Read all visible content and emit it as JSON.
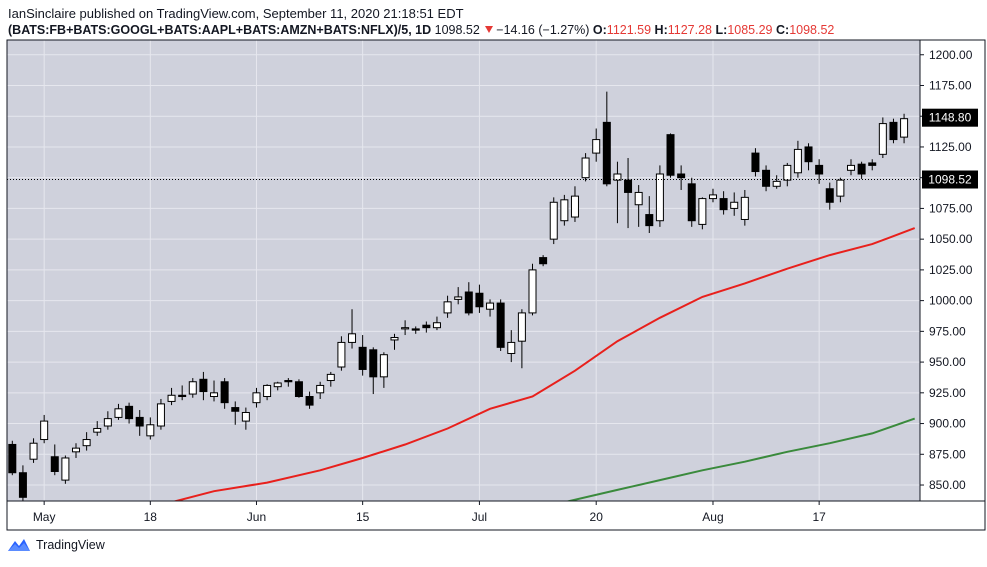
{
  "header": {
    "publisher_line": "IanSinclaire published on TradingView.com, September 11, 2020 21:18:51 EDT",
    "symbol": "(BATS:FB+BATS:GOOGL+BATS:AAPL+BATS:AMZN+BATS:NFLX)/5, 1D",
    "last": "1098.52",
    "change": "−14.16 (−1.27%)",
    "o_label": "O:",
    "o_value": "1121.59",
    "h_label": "H:",
    "h_value": "1127.28",
    "l_label": "L:",
    "l_value": "1085.29",
    "c_label": "C:",
    "c_value": "1098.52"
  },
  "footer": {
    "brand": "TradingView",
    "logo_icon": "tradingview-logo-icon"
  },
  "colors": {
    "up_body": "#ffffff",
    "down_body": "#000000",
    "ma_fast": "#e8201c",
    "ma_slow": "#3a8a3c",
    "plot_bg": "#cfd1dc",
    "grid": "#e6e7ee",
    "tag_bg": "#000000",
    "tag_fg": "#ffffff"
  },
  "chart_data": {
    "type": "candlestick",
    "title": "(BATS:FB+BATS:GOOGL+BATS:AAPL+BATS:AMZN+BATS:NFLX)/5, 1D",
    "y_range": [
      837,
      1212
    ],
    "y_ticks": [
      "1200.00",
      "1175.00",
      "1150.00",
      "1125.00",
      "1100.00",
      "1075.00",
      "1050.00",
      "1025.00",
      "1000.00",
      "975.00",
      "950.00",
      "925.00",
      "900.00",
      "875.00",
      "850.00"
    ],
    "x_labels": [
      "May",
      "18",
      "Jun",
      "15",
      "Jul",
      "20",
      "Aug",
      "17"
    ],
    "x_label_index": [
      4,
      14,
      24,
      34,
      45,
      56,
      67,
      77
    ],
    "last_price_label": "1098.52",
    "marker_price_label": "1148.80",
    "bars": [
      [
        1,
        883,
        860,
        886,
        858
      ],
      [
        2,
        860,
        840,
        866,
        837
      ],
      [
        3,
        871,
        884,
        888,
        868
      ],
      [
        4,
        887,
        902,
        907,
        884
      ],
      [
        5,
        873,
        861,
        883,
        858
      ],
      [
        6,
        854,
        872,
        874,
        851
      ],
      [
        7,
        877,
        880,
        884,
        872
      ],
      [
        8,
        882,
        887,
        893,
        878
      ],
      [
        9,
        893,
        896,
        902,
        890
      ],
      [
        10,
        898,
        904,
        910,
        895
      ],
      [
        11,
        905,
        912,
        916,
        903
      ],
      [
        12,
        914,
        904,
        917,
        900
      ],
      [
        13,
        905,
        898,
        911,
        890
      ],
      [
        14,
        890,
        899,
        905,
        887
      ],
      [
        15,
        898,
        916,
        920,
        895
      ],
      [
        16,
        918,
        923,
        929,
        915
      ],
      [
        17,
        923,
        922,
        931,
        919
      ],
      [
        18,
        924,
        934,
        937,
        921
      ],
      [
        19,
        936,
        926,
        942,
        919
      ],
      [
        20,
        922,
        925,
        935,
        918
      ],
      [
        21,
        934,
        917,
        937,
        912
      ],
      [
        22,
        913,
        910,
        918,
        899
      ],
      [
        23,
        902,
        909,
        913,
        895
      ],
      [
        24,
        917,
        925,
        929,
        913
      ],
      [
        25,
        922,
        931,
        932,
        919
      ],
      [
        26,
        930,
        933,
        934,
        927
      ],
      [
        27,
        935,
        934,
        937,
        930
      ],
      [
        28,
        934,
        922,
        936,
        921
      ],
      [
        29,
        922,
        915,
        926,
        912
      ],
      [
        30,
        925,
        931,
        934,
        920
      ],
      [
        31,
        935,
        940,
        942,
        930
      ],
      [
        32,
        946,
        966,
        971,
        943
      ],
      [
        33,
        966,
        973,
        993,
        961
      ],
      [
        34,
        962,
        944,
        972,
        939
      ],
      [
        35,
        960,
        938,
        962,
        924
      ],
      [
        36,
        938,
        956,
        958,
        929
      ],
      [
        37,
        968,
        970,
        973,
        960
      ],
      [
        38,
        977,
        978,
        984,
        972
      ],
      [
        39,
        977,
        976,
        979,
        973
      ],
      [
        40,
        980,
        978,
        983,
        974
      ],
      [
        41,
        978,
        982,
        987,
        976
      ],
      [
        42,
        990,
        999,
        1004,
        986
      ],
      [
        43,
        1001,
        1003,
        1011,
        997
      ],
      [
        44,
        1007,
        990,
        1015,
        988
      ],
      [
        45,
        1006,
        995,
        1013,
        990
      ],
      [
        46,
        993,
        998,
        1001,
        987
      ],
      [
        47,
        998,
        962,
        1001,
        959
      ],
      [
        48,
        957,
        966,
        976,
        950
      ],
      [
        49,
        967,
        990,
        993,
        945
      ],
      [
        50,
        990,
        1025,
        1030,
        988
      ],
      [
        51,
        1035,
        1030,
        1037,
        1028
      ],
      [
        52,
        1050,
        1080,
        1084,
        1046
      ],
      [
        53,
        1065,
        1082,
        1086,
        1061
      ],
      [
        54,
        1068,
        1085,
        1093,
        1064
      ],
      [
        55,
        1100,
        1116,
        1120,
        1097
      ],
      [
        56,
        1120,
        1131,
        1140,
        1113
      ],
      [
        57,
        1145,
        1095,
        1170,
        1093
      ],
      [
        58,
        1098,
        1103,
        1113,
        1063
      ],
      [
        59,
        1098,
        1088,
        1116,
        1059
      ],
      [
        60,
        1078,
        1088,
        1094,
        1060
      ],
      [
        61,
        1070,
        1061,
        1085,
        1055
      ],
      [
        62,
        1065,
        1103,
        1110,
        1060
      ],
      [
        63,
        1135,
        1102,
        1136,
        1100
      ],
      [
        64,
        1103,
        1100,
        1110,
        1090
      ],
      [
        65,
        1095,
        1065,
        1100,
        1060
      ],
      [
        66,
        1062,
        1083,
        1084,
        1058
      ],
      [
        67,
        1083,
        1086,
        1091,
        1080
      ],
      [
        68,
        1083,
        1074,
        1089,
        1070
      ],
      [
        69,
        1075,
        1080,
        1088,
        1069
      ],
      [
        70,
        1066,
        1084,
        1090,
        1061
      ],
      [
        71,
        1120,
        1105,
        1124,
        1101
      ],
      [
        72,
        1106,
        1093,
        1110,
        1089
      ],
      [
        73,
        1093,
        1097,
        1102,
        1091
      ],
      [
        74,
        1098,
        1110,
        1112,
        1093
      ],
      [
        75,
        1104,
        1123,
        1130,
        1100
      ],
      [
        76,
        1125,
        1113,
        1128,
        1106
      ],
      [
        77,
        1110,
        1103,
        1115,
        1095
      ],
      [
        78,
        1091,
        1080,
        1096,
        1074
      ],
      [
        79,
        1085,
        1098,
        1100,
        1080
      ],
      [
        80,
        1106,
        1110,
        1115,
        1102
      ],
      [
        81,
        1111,
        1103,
        1113,
        1099
      ],
      [
        82,
        1112,
        1110,
        1115,
        1106
      ],
      [
        83,
        1119,
        1144,
        1149,
        1116
      ],
      [
        84,
        1145,
        1131,
        1148,
        1128
      ],
      [
        85,
        1133,
        1148,
        1152,
        1128
      ]
    ],
    "series": [
      {
        "name": "",
        "color": "#e8201c",
        "x": [
          16,
          20,
          25,
          30,
          34,
          38,
          42,
          46,
          50,
          54,
          58,
          62,
          66,
          70,
          74,
          78,
          82,
          86
        ],
        "y": [
          836,
          845,
          852,
          862,
          872,
          883,
          896,
          912,
          922,
          943,
          967,
          986,
          1003,
          1014,
          1026,
          1037,
          1046,
          1059
        ]
      },
      {
        "name": "",
        "color": "#3a8a3c",
        "x": [
          53,
          58,
          62,
          66,
          70,
          74,
          78,
          82,
          86
        ],
        "y": [
          836,
          846,
          854,
          862,
          869,
          877,
          884,
          892,
          904
        ]
      }
    ]
  }
}
